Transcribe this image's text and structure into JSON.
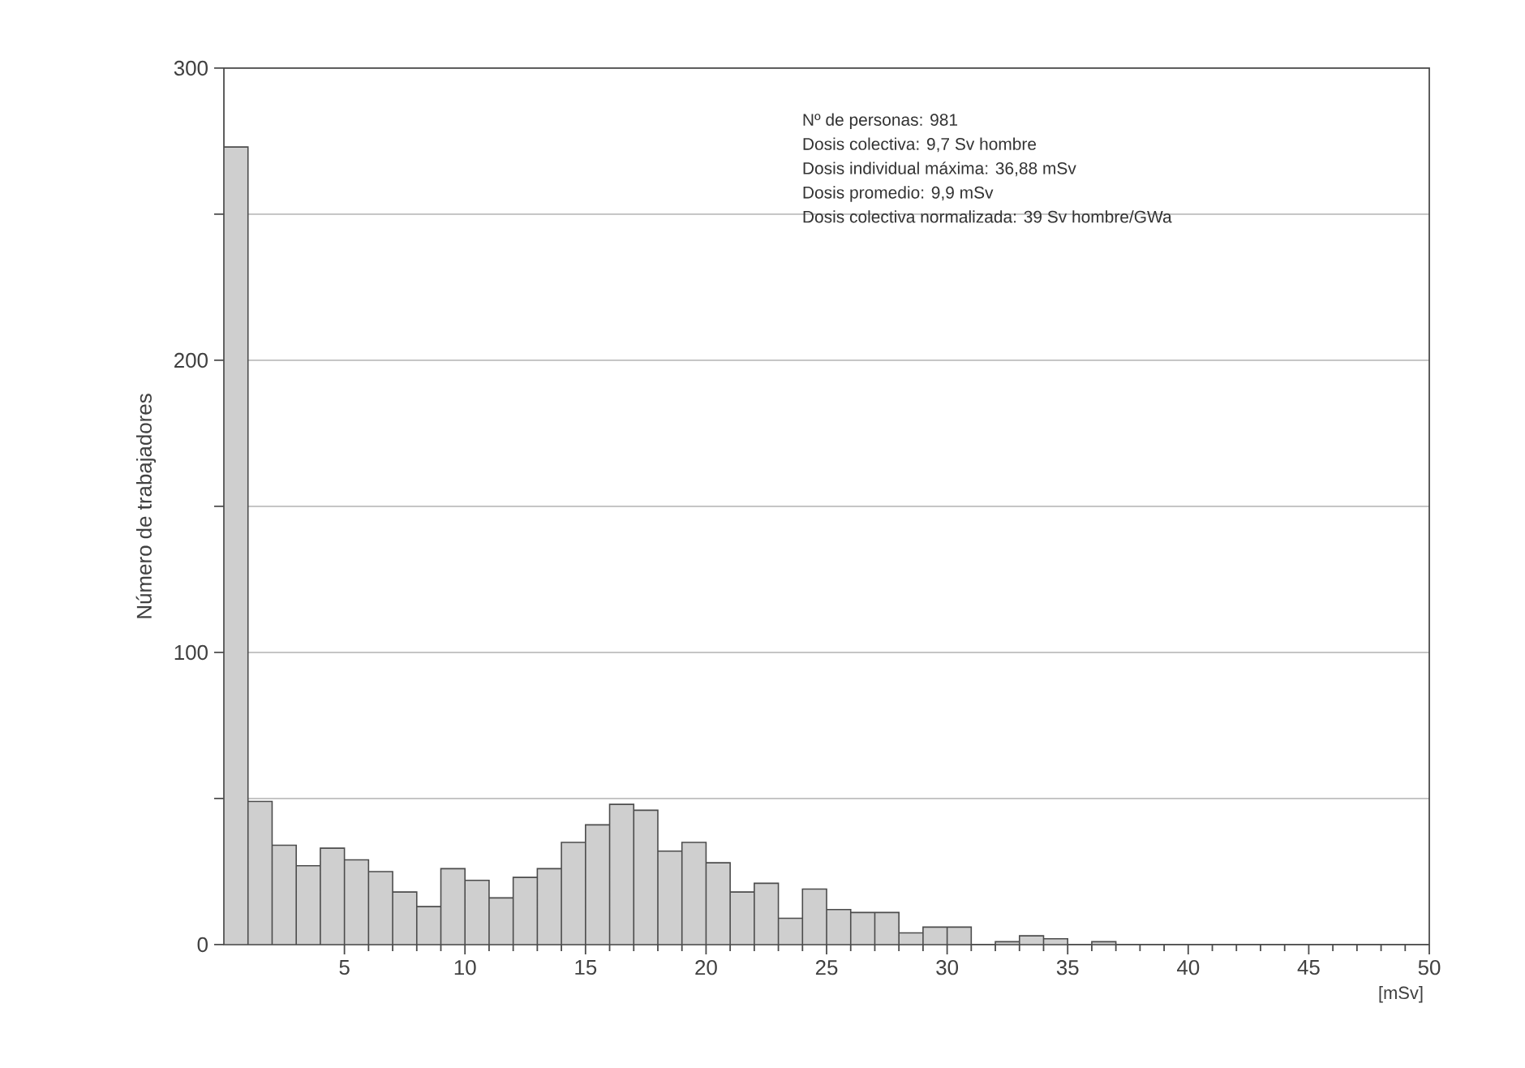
{
  "chart_data": {
    "type": "histogram",
    "xlabel": "[mSv]",
    "ylabel": "Número de trabajadores",
    "annotations": [
      "Nº de personas: 981",
      "Dosis colectiva: 9,7 Sv hombre",
      "Dosis individual máxima: 36,88 mSv",
      "Dosis promedio: 9,9 mSv",
      "Dosis colectiva normalizada: 39 Sv hombre/GWa"
    ],
    "bins": [
      0,
      1,
      2,
      3,
      4,
      5,
      6,
      7,
      8,
      9,
      10,
      11,
      12,
      13,
      14,
      15,
      16,
      17,
      18,
      19,
      20,
      21,
      22,
      23,
      24,
      25,
      26,
      27,
      28,
      29,
      30,
      31,
      32,
      33,
      34,
      35,
      36,
      37
    ],
    "values": [
      273,
      49,
      34,
      27,
      33,
      29,
      25,
      18,
      13,
      26,
      22,
      16,
      23,
      26,
      35,
      41,
      48,
      46,
      32,
      35,
      28,
      18,
      21,
      9,
      19,
      12,
      11,
      11,
      4,
      6,
      6,
      0,
      1,
      3,
      2,
      0,
      1
    ],
    "color": "#cfcfcf",
    "xlim": [
      0,
      50
    ],
    "ylim": [
      0,
      300
    ],
    "xticks": [
      5,
      10,
      15,
      20,
      25,
      30,
      35,
      40,
      45,
      50
    ],
    "yticks": [
      0,
      {
        "value": 50,
        "label": null
      },
      100,
      {
        "value": 150,
        "label": null
      },
      200,
      {
        "value": 250,
        "label": null
      },
      300
    ],
    "grid": "y"
  }
}
